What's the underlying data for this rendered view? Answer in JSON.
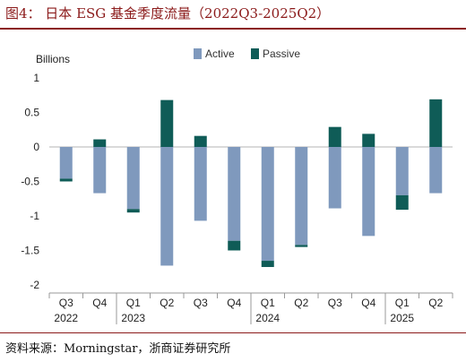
{
  "page": {
    "title": "图4： 日本 ESG 基金季度流量（2022Q3-2025Q2）",
    "source": "资料来源：Morningstar，浙商证券研究所",
    "accent_color": "#8b1a1a"
  },
  "chart_data": {
    "type": "bar",
    "stacked": true,
    "ylabel": "Billions",
    "ylim": [
      -2,
      1
    ],
    "yticks": [
      -2,
      -1.5,
      -1,
      -0.5,
      0,
      0.5,
      1
    ],
    "legend_position": "top-center",
    "grid": false,
    "categories": [
      "Q3",
      "Q4",
      "Q1",
      "Q2",
      "Q3",
      "Q4",
      "Q1",
      "Q2",
      "Q3",
      "Q4",
      "Q1",
      "Q2"
    ],
    "year_labels": [
      "2022",
      "",
      "2023",
      "",
      "",
      "",
      "2024",
      "",
      "",
      "",
      "2025",
      ""
    ],
    "series": [
      {
        "name": "Active",
        "color": "#7f99bd",
        "values": [
          -0.46,
          -0.67,
          -0.9,
          -1.72,
          -1.07,
          -1.36,
          -1.65,
          -1.42,
          -0.89,
          -1.29,
          -0.7,
          -0.67
        ]
      },
      {
        "name": "Passive",
        "color": "#0f5c57",
        "values": [
          -0.04,
          0.11,
          -0.05,
          0.68,
          0.16,
          -0.14,
          -0.09,
          -0.03,
          0.29,
          0.19,
          -0.21,
          0.69
        ]
      }
    ]
  }
}
